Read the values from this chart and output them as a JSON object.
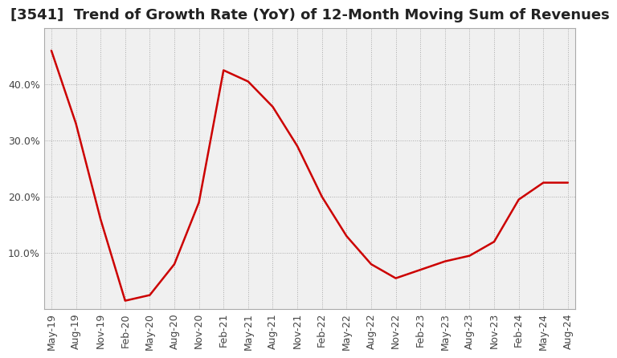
{
  "title": "[3541]  Trend of Growth Rate (YoY) of 12-Month Moving Sum of Revenues",
  "line_color": "#cc0000",
  "background_color": "#ffffff",
  "plot_background_color": "#f0f0f0",
  "grid_color": "#aaaaaa",
  "x_labels": [
    "May-19",
    "Aug-19",
    "Nov-19",
    "Feb-20",
    "May-20",
    "Aug-20",
    "Nov-20",
    "Feb-21",
    "May-21",
    "Aug-21",
    "Nov-21",
    "Feb-22",
    "May-22",
    "Aug-22",
    "Nov-22",
    "Feb-23",
    "May-23",
    "Aug-23",
    "Nov-23",
    "Feb-24",
    "May-24",
    "Aug-24"
  ],
  "y_values": [
    46.0,
    33.0,
    16.0,
    1.5,
    2.5,
    8.0,
    19.0,
    42.5,
    40.5,
    36.0,
    29.0,
    20.0,
    13.0,
    8.0,
    5.5,
    7.0,
    8.5,
    9.5,
    12.0,
    19.5,
    22.5,
    22.5
  ],
  "ylim": [
    0,
    50
  ],
  "yticks": [
    10.0,
    20.0,
    30.0,
    40.0
  ],
  "title_fontsize": 13,
  "tick_fontsize": 9,
  "line_width": 1.8
}
